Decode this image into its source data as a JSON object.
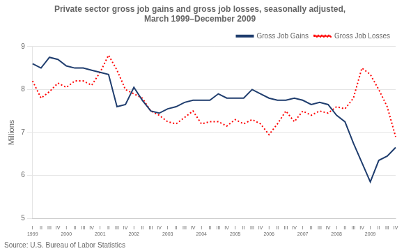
{
  "chart_data": {
    "type": "line",
    "title": [
      "Private sector gross job gains and gross job losses, seasonally adjusted,",
      "March 1999–December 2009"
    ],
    "ylabel": "Millions",
    "annotations": [
      "Source: U.S. Bureau of Labor Statistics"
    ],
    "categories": [
      [
        "I",
        "1999"
      ],
      "II",
      "III",
      "IV",
      [
        "I",
        "2000"
      ],
      "II",
      "III",
      "IV",
      [
        "I",
        "2001"
      ],
      "II",
      "III",
      "IV",
      [
        "I",
        "2002"
      ],
      "II",
      "III",
      "IV",
      [
        "I",
        "2003"
      ],
      "II",
      "III",
      "IV",
      [
        "I",
        "2004"
      ],
      "II",
      "III",
      "IV",
      [
        "I",
        "2005"
      ],
      "II",
      "III",
      "IV",
      [
        "I",
        "2006"
      ],
      "II",
      "III",
      "IV",
      [
        "I",
        "2007"
      ],
      "II",
      "III",
      "IV",
      [
        "I",
        "2008"
      ],
      "II",
      "III",
      "IV",
      [
        "I",
        "2009"
      ],
      "II",
      "III",
      "IV"
    ],
    "series": [
      {
        "name": "Gross Job Gains",
        "color": "#1F3D6E",
        "line_style": "solid",
        "values": [
          8.6,
          8.5,
          8.75,
          8.7,
          8.55,
          8.5,
          8.5,
          8.45,
          8.4,
          8.35,
          7.6,
          7.65,
          8.05,
          7.75,
          7.5,
          7.45,
          7.55,
          7.6,
          7.7,
          7.75,
          7.75,
          7.75,
          7.9,
          7.8,
          7.8,
          7.8,
          8.0,
          7.9,
          7.8,
          7.75,
          7.75,
          7.8,
          7.75,
          7.65,
          7.7,
          7.65,
          7.4,
          7.25,
          6.75,
          6.3,
          5.85,
          6.35,
          6.45,
          6.65
        ]
      },
      {
        "name": "Gross Job Losses",
        "color": "#FF0000",
        "line_style": "dotted",
        "values": [
          8.2,
          7.8,
          7.95,
          8.15,
          8.05,
          8.2,
          8.2,
          8.1,
          8.4,
          8.8,
          8.45,
          8.0,
          7.9,
          7.8,
          7.5,
          7.4,
          7.25,
          7.2,
          7.35,
          7.5,
          7.2,
          7.25,
          7.25,
          7.15,
          7.3,
          7.2,
          7.3,
          7.2,
          6.95,
          7.2,
          7.5,
          7.25,
          7.5,
          7.4,
          7.5,
          7.45,
          7.6,
          7.55,
          7.8,
          8.5,
          8.35,
          8.0,
          7.6,
          6.9
        ]
      }
    ],
    "ylim": [
      5,
      9
    ],
    "yticks": [
      5,
      6,
      7,
      8,
      9
    ],
    "grid": "y",
    "legend": "upper right"
  }
}
